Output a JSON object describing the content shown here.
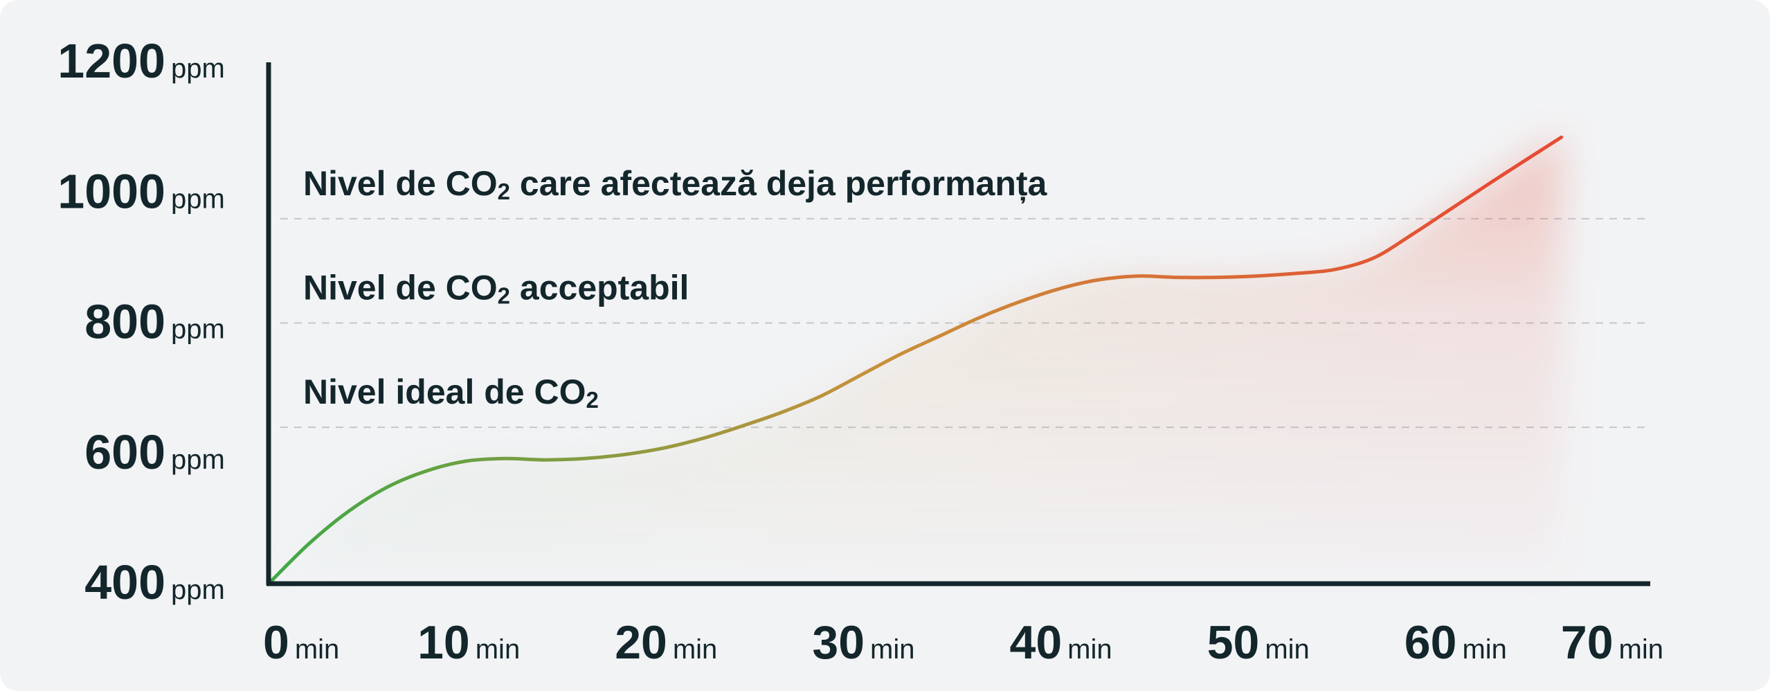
{
  "chart_data": {
    "type": "area",
    "title": "",
    "xlabel": "",
    "ylabel": "",
    "xlim": [
      0,
      70
    ],
    "ylim": [
      400,
      1200
    ],
    "x_ticks": [
      {
        "value": 0,
        "label": "0",
        "unit": "min"
      },
      {
        "value": 10,
        "label": "10",
        "unit": "min"
      },
      {
        "value": 20,
        "label": "20",
        "unit": "min"
      },
      {
        "value": 30,
        "label": "30",
        "unit": "min"
      },
      {
        "value": 40,
        "label": "40",
        "unit": "min"
      },
      {
        "value": 50,
        "label": "50",
        "unit": "min"
      },
      {
        "value": 60,
        "label": "60",
        "unit": "min"
      },
      {
        "value": 70,
        "label": "70",
        "unit": "min"
      }
    ],
    "y_ticks": [
      {
        "value": 400,
        "label": "400",
        "unit": "ppm"
      },
      {
        "value": 600,
        "label": "600",
        "unit": "ppm"
      },
      {
        "value": 800,
        "label": "800",
        "unit": "ppm"
      },
      {
        "value": 1000,
        "label": "1000",
        "unit": "ppm"
      },
      {
        "value": 1200,
        "label": "1200",
        "unit": "ppm"
      }
    ],
    "thresholds": [
      {
        "value": 960,
        "prefix": "Nivel de CO",
        "subscript": "2",
        "suffix": " care afectează deja performanța"
      },
      {
        "value": 800,
        "prefix": "Nivel de CO",
        "subscript": "2",
        "suffix": " acceptabil"
      },
      {
        "value": 640,
        "prefix": "Nivel ideal de CO",
        "subscript": "2",
        "suffix": ""
      }
    ],
    "series": [
      {
        "x": [
          0,
          2,
          4,
          6,
          8,
          10,
          12,
          14,
          16,
          18,
          20,
          22,
          24,
          26,
          28,
          30,
          32,
          34,
          36,
          38,
          40,
          42,
          44,
          46,
          48,
          50,
          52,
          54,
          56,
          58,
          60,
          62,
          64,
          65.5
        ],
        "y": [
          400,
          460,
          510,
          548,
          573,
          588,
          592,
          590,
          592,
          598,
          608,
          623,
          642,
          663,
          688,
          720,
          752,
          780,
          808,
          832,
          852,
          866,
          872,
          870,
          870,
          872,
          876,
          882,
          900,
          937,
          977,
          1017,
          1056,
          1085
        ]
      }
    ],
    "grid": false,
    "legend": "none",
    "colors": {
      "axis": "#13262b",
      "threshold_line": "#c4c7ca",
      "gradient_start": "#3ea846",
      "gradient_mid": "#c9903a",
      "gradient_end": "#e64b33",
      "background": "#f2f3f5"
    }
  }
}
